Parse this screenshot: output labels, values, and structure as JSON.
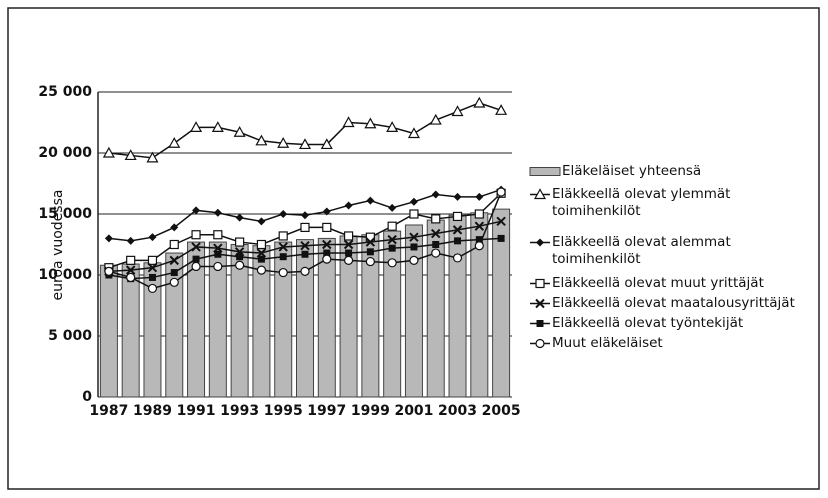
{
  "chart_data": {
    "type": "bar_line",
    "ylabel": "euroa vuodessa",
    "categories": [
      "1987",
      null,
      "1989",
      null,
      "1991",
      null,
      "1993",
      null,
      "1995",
      null,
      "1997",
      null,
      "1999",
      null,
      "2001",
      null,
      "2003",
      null,
      "2005"
    ],
    "ylim": [
      0,
      25000
    ],
    "yticks": [
      0,
      {
        "value": 5000,
        "label": "5 000"
      },
      {
        "value": 10000,
        "label": "10 000"
      },
      {
        "value": 15000,
        "label": "15 000"
      },
      {
        "value": 20000,
        "label": "20 000"
      },
      {
        "value": 25000,
        "label": "25 000"
      }
    ],
    "grid": true,
    "series": [
      {
        "name": "Eläkeläiset yhteensä",
        "marker": "bar",
        "color": "#b8b8b8",
        "values": [
          10800,
          10900,
          11000,
          11800,
          12700,
          12700,
          12500,
          12400,
          12700,
          12900,
          13000,
          13200,
          13300,
          13600,
          14100,
          14500,
          14900,
          15100,
          15400
        ]
      },
      {
        "name": "Eläkkeellä olevat ylemmät toimihenkilöt",
        "marker": "triangle",
        "color": "#111",
        "values": [
          20000,
          19800,
          19600,
          20800,
          22100,
          22100,
          21700,
          21000,
          20800,
          20700,
          20700,
          22500,
          22400,
          22100,
          21600,
          22700,
          23400,
          24100,
          23500
        ]
      },
      {
        "name": "Eläkkeellä olevat alemmat toimihenkilöt",
        "marker": "diamond",
        "color": "#111",
        "values": [
          13000,
          12800,
          13100,
          13900,
          15300,
          15100,
          14700,
          14400,
          15000,
          14900,
          15200,
          15700,
          16100,
          15500,
          16000,
          16600,
          16400,
          16400,
          17000
        ]
      },
      {
        "name": "Eläkkeellä olevat muut yrittäjät",
        "marker": "square-open",
        "color": "#111",
        "values": [
          10600,
          11200,
          11200,
          12500,
          13300,
          13300,
          12700,
          12500,
          13200,
          13900,
          13900,
          13200,
          13100,
          14000,
          15000,
          14600,
          14800,
          15000,
          16700
        ]
      },
      {
        "name": "Eläkkeellä olevat maatalousyrittäjät",
        "marker": "cross",
        "color": "#111",
        "values": [
          10300,
          10400,
          10600,
          11200,
          12300,
          12200,
          11900,
          11800,
          12300,
          12400,
          12500,
          12500,
          12700,
          12900,
          13100,
          13400,
          13700,
          14000,
          14400
        ]
      },
      {
        "name": "Eläkkeellä olevat työntekijät",
        "marker": "square",
        "color": "#111",
        "values": [
          10000,
          9700,
          9800,
          10200,
          11300,
          11700,
          11500,
          11300,
          11500,
          11700,
          11800,
          11800,
          11900,
          12200,
          12300,
          12500,
          12800,
          12900,
          13000
        ]
      },
      {
        "name": "Muut eläkeläiset",
        "marker": "circle",
        "color": "#111",
        "values": [
          10300,
          9800,
          8900,
          9400,
          10700,
          10700,
          10800,
          10400,
          10200,
          10300,
          11300,
          11200,
          11100,
          11000,
          11200,
          11800,
          11400,
          12400,
          16800
        ]
      }
    ]
  }
}
